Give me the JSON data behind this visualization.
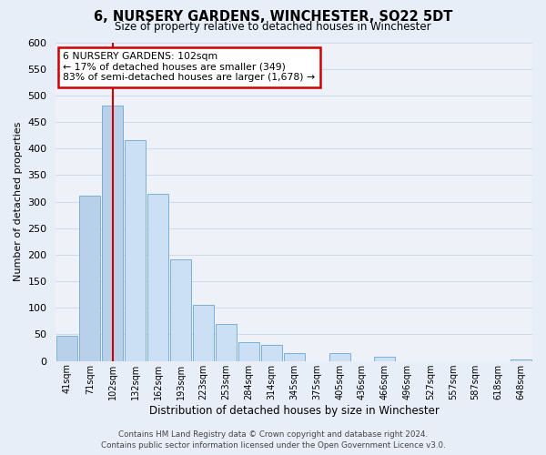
{
  "title": "6, NURSERY GARDENS, WINCHESTER, SO22 5DT",
  "subtitle": "Size of property relative to detached houses in Winchester",
  "xlabel": "Distribution of detached houses by size in Winchester",
  "ylabel": "Number of detached properties",
  "bin_labels": [
    "41sqm",
    "71sqm",
    "102sqm",
    "132sqm",
    "162sqm",
    "193sqm",
    "223sqm",
    "253sqm",
    "284sqm",
    "314sqm",
    "345sqm",
    "375sqm",
    "405sqm",
    "436sqm",
    "466sqm",
    "496sqm",
    "527sqm",
    "557sqm",
    "587sqm",
    "618sqm",
    "648sqm"
  ],
  "bar_values": [
    47,
    311,
    481,
    415,
    315,
    192,
    105,
    69,
    36,
    30,
    14,
    0,
    14,
    0,
    8,
    0,
    0,
    0,
    0,
    0,
    2
  ],
  "highlight_index": 2,
  "highlight_color": "#b8d0ea",
  "normal_color": "#cce0f5",
  "bar_edge_color": "#7ab0d8",
  "annotation_line1": "6 NURSERY GARDENS: 102sqm",
  "annotation_line2": "← 17% of detached houses are smaller (349)",
  "annotation_line3": "83% of semi-detached houses are larger (1,678) →",
  "annotation_box_color": "#ffffff",
  "annotation_border_color": "#cc0000",
  "ylim": [
    0,
    600
  ],
  "yticks": [
    0,
    50,
    100,
    150,
    200,
    250,
    300,
    350,
    400,
    450,
    500,
    550,
    600
  ],
  "footer_line1": "Contains HM Land Registry data © Crown copyright and database right 2024.",
  "footer_line2": "Contains public sector information licensed under the Open Government Licence v3.0.",
  "grid_color": "#d0daea",
  "background_color": "#e8eef8",
  "plot_bg_color": "#eef2f8",
  "red_line_color": "#cc0000"
}
